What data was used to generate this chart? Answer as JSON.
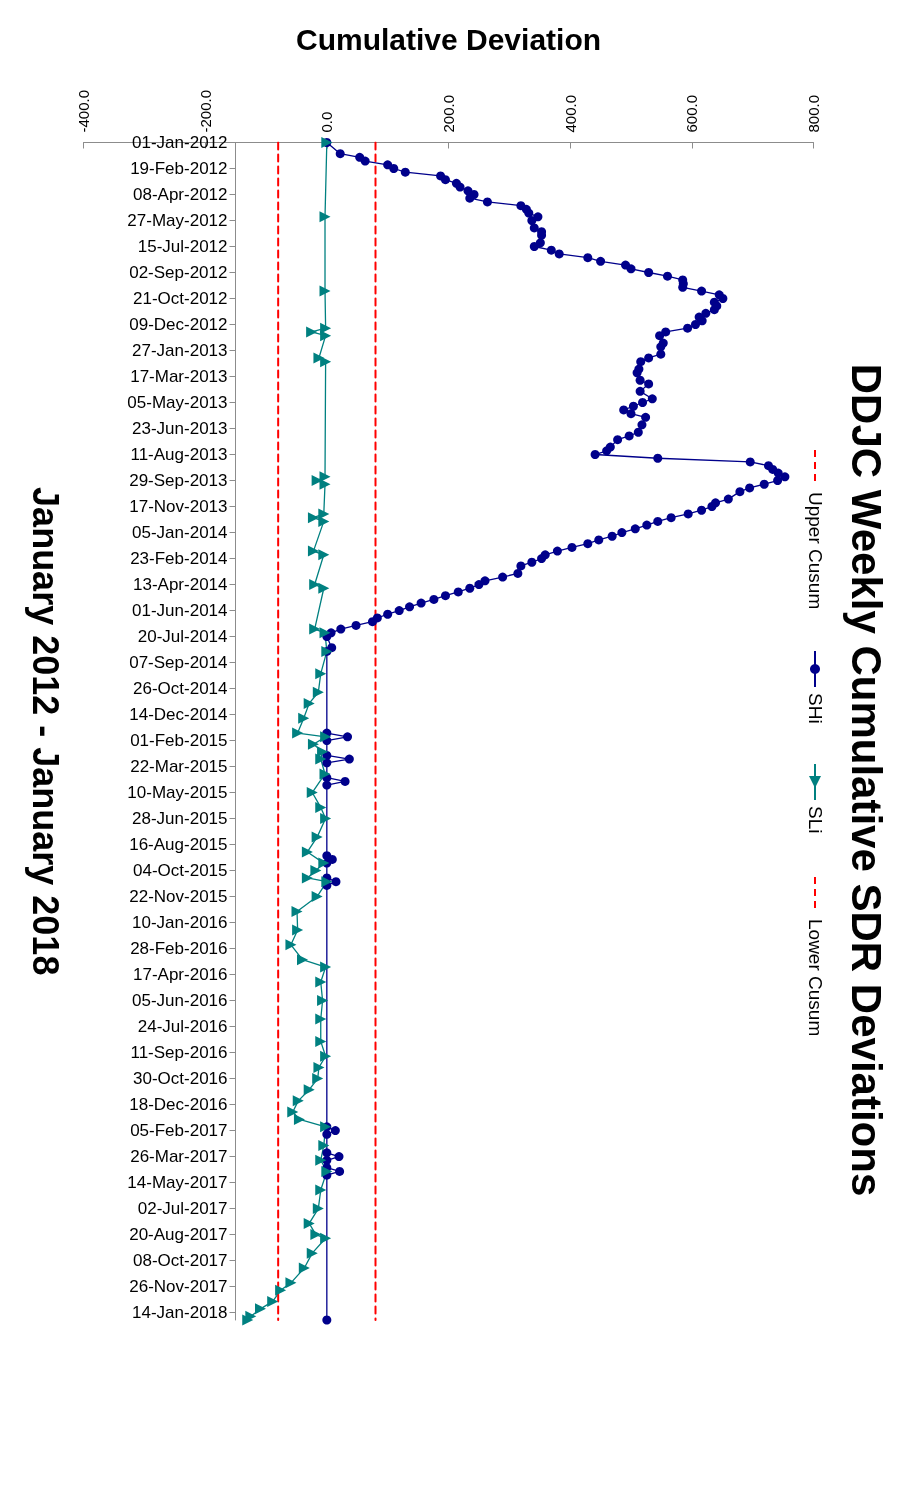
{
  "chart_data": {
    "type": "line",
    "title": "DDJC Weekly Cumulative SDR Deviations",
    "orientation": "horizontal",
    "ylabel": "January 2012 - January 2018",
    "xlabel": "Cumulative Deviation",
    "legend": "right",
    "ylim": [
      "2018-01-28",
      "2012-01-01"
    ],
    "xlim": [
      -400,
      800
    ],
    "xticks": [
      {
        "value": -400,
        "label": "-400.0"
      },
      {
        "value": -200,
        "label": "-200.0"
      },
      {
        "value": 0,
        "label": "0.0"
      },
      {
        "value": 200,
        "label": "200.0"
      },
      {
        "value": 400,
        "label": "400.0"
      },
      {
        "value": 600,
        "label": "600.0"
      },
      {
        "value": 800,
        "label": "800.0"
      }
    ],
    "yticks": [
      {
        "value": "2012-01-01",
        "label": "01-Jan-2012"
      },
      {
        "value": "2012-02-19",
        "label": "19-Feb-2012"
      },
      {
        "value": "2012-04-08",
        "label": "08-Apr-2012"
      },
      {
        "value": "2012-05-27",
        "label": "27-May-2012"
      },
      {
        "value": "2012-07-15",
        "label": "15-Jul-2012"
      },
      {
        "value": "2012-09-02",
        "label": "02-Sep-2012"
      },
      {
        "value": "2012-10-21",
        "label": "21-Oct-2012"
      },
      {
        "value": "2012-12-09",
        "label": "09-Dec-2012"
      },
      {
        "value": "2013-01-27",
        "label": "27-Jan-2013"
      },
      {
        "value": "2013-03-17",
        "label": "17-Mar-2013"
      },
      {
        "value": "2013-05-05",
        "label": "05-May-2013"
      },
      {
        "value": "2013-06-23",
        "label": "23-Jun-2013"
      },
      {
        "value": "2013-08-11",
        "label": "11-Aug-2013"
      },
      {
        "value": "2013-09-29",
        "label": "29-Sep-2013"
      },
      {
        "value": "2013-11-17",
        "label": "17-Nov-2013"
      },
      {
        "value": "2014-01-05",
        "label": "05-Jan-2014"
      },
      {
        "value": "2014-02-23",
        "label": "23-Feb-2014"
      },
      {
        "value": "2014-04-13",
        "label": "13-Apr-2014"
      },
      {
        "value": "2014-06-01",
        "label": "01-Jun-2014"
      },
      {
        "value": "2014-07-20",
        "label": "20-Jul-2014"
      },
      {
        "value": "2014-09-07",
        "label": "07-Sep-2014"
      },
      {
        "value": "2014-10-26",
        "label": "26-Oct-2014"
      },
      {
        "value": "2014-12-14",
        "label": "14-Dec-2014"
      },
      {
        "value": "2015-02-01",
        "label": "01-Feb-2015"
      },
      {
        "value": "2015-03-22",
        "label": "22-Mar-2015"
      },
      {
        "value": "2015-05-10",
        "label": "10-May-2015"
      },
      {
        "value": "2015-06-28",
        "label": "28-Jun-2015"
      },
      {
        "value": "2015-08-16",
        "label": "16-Aug-2015"
      },
      {
        "value": "2015-10-04",
        "label": "04-Oct-2015"
      },
      {
        "value": "2015-11-22",
        "label": "22-Nov-2015"
      },
      {
        "value": "2016-01-10",
        "label": "10-Jan-2016"
      },
      {
        "value": "2016-02-28",
        "label": "28-Feb-2016"
      },
      {
        "value": "2016-04-17",
        "label": "17-Apr-2016"
      },
      {
        "value": "2016-06-05",
        "label": "05-Jun-2016"
      },
      {
        "value": "2016-07-24",
        "label": "24-Jul-2016"
      },
      {
        "value": "2016-09-11",
        "label": "11-Sep-2016"
      },
      {
        "value": "2016-10-30",
        "label": "30-Oct-2016"
      },
      {
        "value": "2016-12-18",
        "label": "18-Dec-2016"
      },
      {
        "value": "2017-02-05",
        "label": "05-Feb-2017"
      },
      {
        "value": "2017-03-26",
        "label": "26-Mar-2017"
      },
      {
        "value": "2017-05-14",
        "label": "14-May-2017"
      },
      {
        "value": "2017-07-02",
        "label": "02-Jul-2017"
      },
      {
        "value": "2017-08-20",
        "label": "20-Aug-2017"
      },
      {
        "value": "2017-10-08",
        "label": "08-Oct-2017"
      },
      {
        "value": "2017-11-26",
        "label": "26-Nov-2017"
      },
      {
        "value": "2018-01-14",
        "label": "14-Jan-2018"
      }
    ],
    "series": [
      {
        "name": "Upper Cusum",
        "color": "#ff0000",
        "marker": "none",
        "line_style": "dashed",
        "x": [
          "2012-01-01",
          "2018-01-28"
        ],
        "values": [
          80,
          80
        ]
      },
      {
        "name": "SHi",
        "color": "#00008b",
        "marker": "circle",
        "line_style": "solid",
        "x": [
          "2012-01-01",
          "2012-01-22",
          "2012-01-29",
          "2012-02-05",
          "2012-02-12",
          "2012-02-19",
          "2012-02-26",
          "2012-03-04",
          "2012-03-11",
          "2012-03-18",
          "2012-03-25",
          "2012-04-01",
          "2012-04-08",
          "2012-04-15",
          "2012-04-22",
          "2012-04-29",
          "2012-05-06",
          "2012-05-13",
          "2012-05-20",
          "2012-05-27",
          "2012-06-10",
          "2012-06-17",
          "2012-06-24",
          "2012-07-08",
          "2012-07-15",
          "2012-07-22",
          "2012-07-29",
          "2012-08-05",
          "2012-08-12",
          "2012-08-19",
          "2012-08-26",
          "2012-09-02",
          "2012-09-09",
          "2012-09-16",
          "2012-09-23",
          "2012-09-30",
          "2012-10-07",
          "2012-10-14",
          "2012-10-21",
          "2012-10-28",
          "2012-11-04",
          "2012-11-11",
          "2012-11-18",
          "2012-11-25",
          "2012-12-02",
          "2012-12-09",
          "2012-12-16",
          "2012-12-23",
          "2012-12-30",
          "2013-01-13",
          "2013-01-20",
          "2013-02-03",
          "2013-02-10",
          "2013-02-17",
          "2013-03-03",
          "2013-03-10",
          "2013-03-24",
          "2013-03-31",
          "2013-04-14",
          "2013-04-28",
          "2013-05-05",
          "2013-05-12",
          "2013-05-19",
          "2013-05-26",
          "2013-06-02",
          "2013-06-16",
          "2013-06-30",
          "2013-07-07",
          "2013-07-14",
          "2013-07-28",
          "2013-08-04",
          "2013-08-11",
          "2013-08-18",
          "2013-08-25",
          "2013-09-01",
          "2013-09-08",
          "2013-09-15",
          "2013-09-22",
          "2013-09-29",
          "2013-10-06",
          "2013-10-13",
          "2013-10-20",
          "2013-11-03",
          "2013-11-10",
          "2013-11-17",
          "2013-11-24",
          "2013-12-01",
          "2013-12-08",
          "2013-12-15",
          "2013-12-22",
          "2013-12-29",
          "2014-01-05",
          "2014-01-12",
          "2014-01-19",
          "2014-01-26",
          "2014-02-02",
          "2014-02-09",
          "2014-02-16",
          "2014-02-23",
          "2014-03-02",
          "2014-03-09",
          "2014-03-23",
          "2014-03-30",
          "2014-04-06",
          "2014-04-13",
          "2014-04-20",
          "2014-04-27",
          "2014-05-04",
          "2014-05-11",
          "2014-05-18",
          "2014-05-25",
          "2014-06-01",
          "2014-06-08",
          "2014-06-15",
          "2014-06-22",
          "2014-06-29",
          "2014-07-06",
          "2014-07-13",
          "2014-07-20",
          "2014-08-10",
          "2014-08-17",
          "2015-01-18",
          "2015-01-25",
          "2015-02-01",
          "2015-03-01",
          "2015-03-08",
          "2015-03-15",
          "2015-04-12",
          "2015-04-19",
          "2015-04-26",
          "2015-09-06",
          "2015-09-13",
          "2015-09-20",
          "2015-10-18",
          "2015-10-25",
          "2015-11-01",
          "2017-01-29",
          "2017-02-05",
          "2017-02-12",
          "2017-03-19",
          "2017-03-26",
          "2017-04-02",
          "2017-04-16",
          "2017-04-23",
          "2017-04-30",
          "2018-01-28"
        ],
        "values": [
          0,
          22,
          54,
          63,
          100,
          110,
          129,
          187,
          195,
          213,
          219,
          232,
          242,
          235,
          264,
          319,
          328,
          332,
          347,
          337,
          341,
          353,
          353,
          351,
          341,
          369,
          382,
          429,
          450,
          491,
          500,
          529,
          560,
          585,
          586,
          585,
          616,
          645,
          651,
          637,
          641,
          637,
          623,
          612,
          617,
          606,
          593,
          557,
          547,
          553,
          549,
          549,
          529,
          516,
          513,
          510,
          515,
          529,
          515,
          535,
          519,
          504,
          488,
          500,
          524,
          518,
          512,
          497,
          478,
          466,
          460,
          441,
          544,
          696,
          726,
          733,
          742,
          753,
          741,
          719,
          695,
          679,
          660,
          639,
          633,
          616,
          594,
          566,
          544,
          526,
          507,
          485,
          469,
          447,
          429,
          403,
          379,
          359,
          353,
          337,
          319,
          314,
          289,
          260,
          250,
          235,
          216,
          195,
          176,
          155,
          136,
          119,
          100,
          83,
          75,
          48,
          23,
          7,
          0,
          8,
          0,
          0,
          34,
          0,
          0,
          37,
          0,
          0,
          30,
          0,
          0,
          9,
          0,
          0,
          15,
          0,
          0,
          14,
          0,
          0,
          20,
          0,
          0,
          21,
          0,
          0
        ]
      },
      {
        "name": "SLi",
        "color": "#008080",
        "marker": "triangle",
        "line_style": "solid",
        "x": [
          "2012-01-01",
          "2012-05-20",
          "2012-10-07",
          "2012-12-16",
          "2012-12-23",
          "2012-12-30",
          "2013-02-10",
          "2013-02-17",
          "2013-09-22",
          "2013-09-29",
          "2013-10-06",
          "2013-12-01",
          "2013-12-08",
          "2013-12-15",
          "2014-02-09",
          "2014-02-16",
          "2014-04-13",
          "2014-04-20",
          "2014-07-06",
          "2014-07-13",
          "2014-08-17",
          "2014-09-28",
          "2014-11-02",
          "2014-11-23",
          "2014-12-21",
          "2015-01-18",
          "2015-01-25",
          "2015-02-08",
          "2015-02-22",
          "2015-03-08",
          "2015-04-05",
          "2015-05-10",
          "2015-06-07",
          "2015-06-28",
          "2015-08-02",
          "2015-08-30",
          "2015-09-20",
          "2015-10-04",
          "2015-10-18",
          "2015-10-25",
          "2015-11-22",
          "2015-12-20",
          "2016-01-24",
          "2016-02-21",
          "2016-03-20",
          "2016-04-03",
          "2016-05-01",
          "2016-06-05",
          "2016-07-10",
          "2016-08-21",
          "2016-09-18",
          "2016-10-09",
          "2016-10-30",
          "2016-11-20",
          "2016-12-11",
          "2017-01-01",
          "2017-01-15",
          "2017-01-29",
          "2017-03-05",
          "2017-04-02",
          "2017-04-23",
          "2017-05-28",
          "2017-07-02",
          "2017-07-30",
          "2017-08-20",
          "2017-08-27",
          "2017-09-24",
          "2017-10-22",
          "2017-11-19",
          "2017-12-03",
          "2017-12-24",
          "2018-01-07",
          "2018-01-21",
          "2018-01-28"
        ],
        "values": [
          0,
          -3,
          -3,
          -2,
          -25,
          -2,
          -13,
          -2,
          -3,
          -16,
          -3,
          -5,
          -22,
          -5,
          -22,
          -5,
          -20,
          -5,
          -20,
          -3,
          0,
          -10,
          -14,
          -29,
          -38,
          -48,
          -2,
          -22,
          -7,
          -10,
          -3,
          -24,
          -10,
          -2,
          -16,
          -32,
          -5,
          -18,
          -32,
          0,
          -16,
          -49,
          -48,
          -59,
          -40,
          -2,
          -10,
          -7,
          -10,
          -10,
          -2,
          -13,
          -15,
          -29,
          -47,
          -56,
          -45,
          -2,
          -5,
          -10,
          0,
          -10,
          -14,
          -29,
          -18,
          -2,
          -24,
          -37,
          -59,
          -76,
          -89,
          -109,
          -125,
          -130
        ]
      },
      {
        "name": "Lower Cusum",
        "color": "#ff0000",
        "marker": "none",
        "line_style": "dashed",
        "x": [
          "2012-01-01",
          "2018-01-28"
        ],
        "values": [
          -80,
          -80
        ]
      }
    ]
  }
}
